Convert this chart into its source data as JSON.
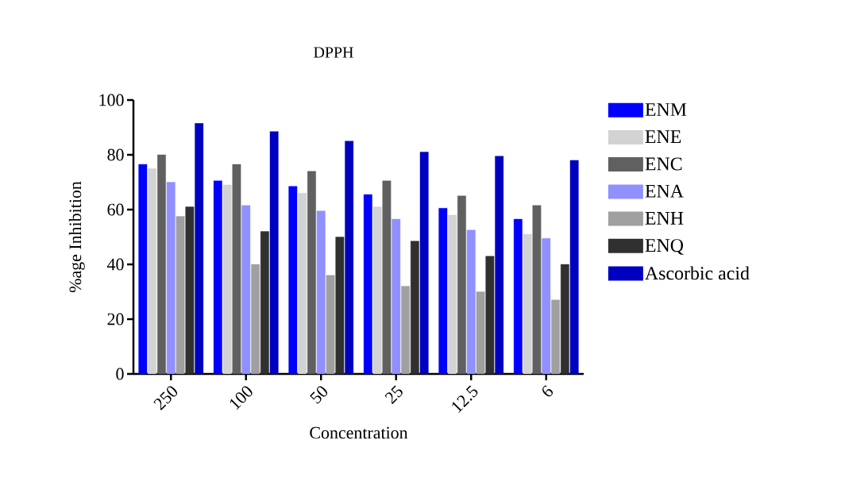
{
  "chart_data": {
    "type": "bar",
    "title": "DPPH",
    "xlabel": "Concentration",
    "ylabel": "%age Inhibition",
    "categories": [
      "250",
      "100",
      "50",
      "25",
      "12.5",
      "6"
    ],
    "series": [
      {
        "name": "ENM",
        "color": "#0000ff",
        "values": [
          76.5,
          70.5,
          68.5,
          65.5,
          60.5,
          56.5
        ]
      },
      {
        "name": "ENE",
        "color": "#d3d3d3",
        "values": [
          75,
          69,
          66,
          61,
          58,
          51
        ]
      },
      {
        "name": "ENC",
        "color": "#606060",
        "values": [
          80,
          76.5,
          74,
          70.5,
          65,
          61.5
        ]
      },
      {
        "name": "ENA",
        "color": "#9090ff",
        "values": [
          70,
          61.5,
          59.5,
          56.5,
          52.5,
          49.5
        ]
      },
      {
        "name": "ENH",
        "color": "#a0a0a0",
        "values": [
          57.5,
          40,
          36,
          32,
          30,
          27
        ]
      },
      {
        "name": "ENQ",
        "color": "#303030",
        "values": [
          61,
          52,
          50,
          48.5,
          43,
          40
        ]
      },
      {
        "name": "Ascorbic acid",
        "color": "#0000c0",
        "values": [
          91.5,
          88.5,
          85,
          81,
          79.5,
          78
        ]
      }
    ],
    "ylim": [
      0,
      100
    ],
    "yticks": [
      0,
      20,
      40,
      60,
      80,
      100
    ],
    "legend": "right"
  }
}
